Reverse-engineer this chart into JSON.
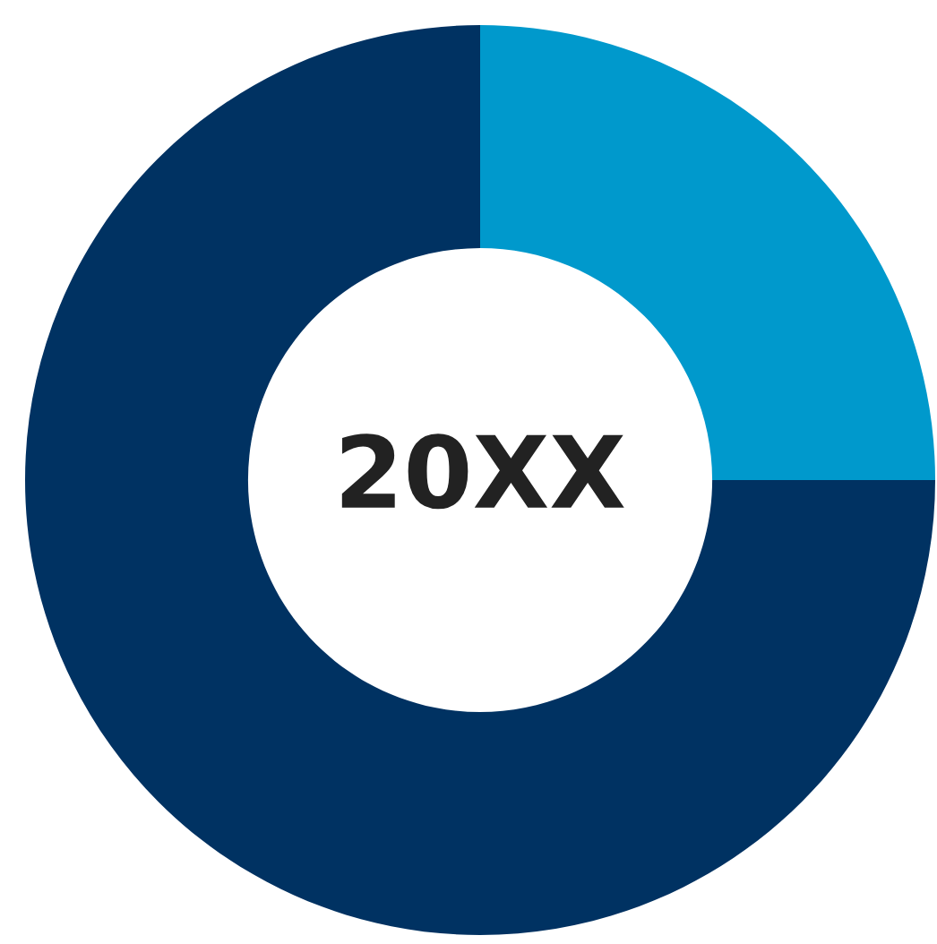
{
  "chart_data": {
    "type": "donut",
    "title": "20XX",
    "categories": [
      null,
      null
    ],
    "values": [
      25,
      75
    ],
    "colors": [
      "#0099cc",
      "#003262"
    ]
  }
}
